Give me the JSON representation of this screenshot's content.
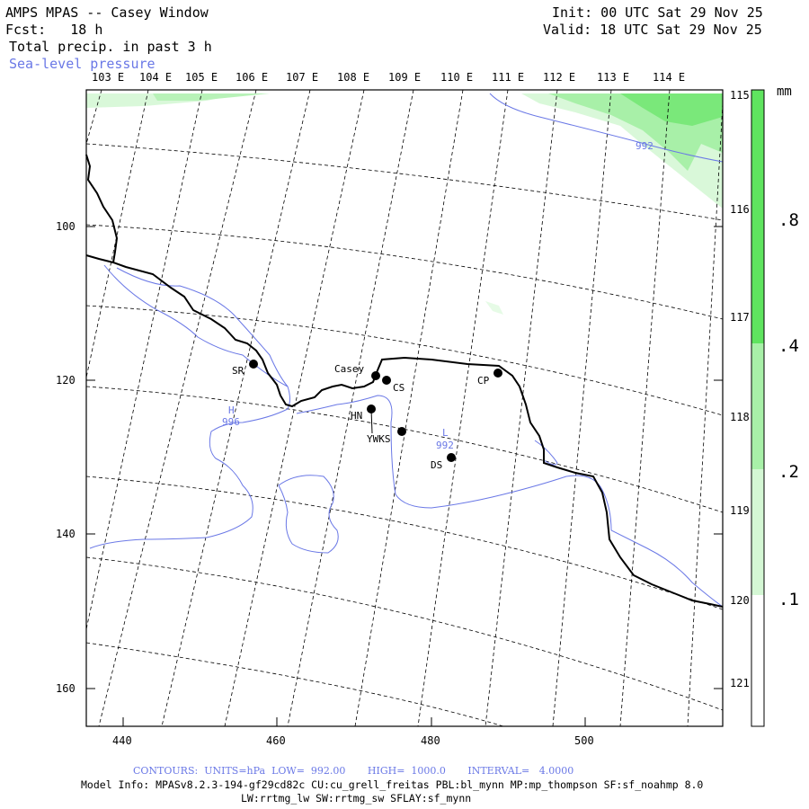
{
  "header": {
    "title": "AMPS MPAS -- Casey Window",
    "forecast": "Fcst:   18 h",
    "field": "Total precip. in past 3 h",
    "overlay": "Sea-level pressure",
    "init": "Init: 00 UTC Sat 29 Nov 25",
    "valid": "Valid: 18 UTC Sat 29 Nov 25"
  },
  "longitude_labels": [
    "103 E",
    "104 E",
    "105 E",
    "106 E",
    "107 E",
    "108 E",
    "109 E",
    "110 E",
    "111 E",
    "112 E",
    "113 E",
    "114 E"
  ],
  "latitude_labels": [
    "115 E",
    "116 E",
    "117 E",
    "118 E",
    "119 E",
    "120 E",
    "121 E"
  ],
  "grid_x_ticks": [
    "440",
    "460",
    "480",
    "500"
  ],
  "grid_y_ticks": [
    "100",
    "120",
    "140",
    "160"
  ],
  "stations": [
    {
      "id": "SR",
      "label": "SR"
    },
    {
      "id": "Casey",
      "label": "Casey"
    },
    {
      "id": "CS",
      "label": "CS"
    },
    {
      "id": "CP",
      "label": "CP"
    },
    {
      "id": "HN",
      "label": "HN"
    },
    {
      "id": "YWKS",
      "label": "YWKS"
    },
    {
      "id": "DS",
      "label": "DS"
    }
  ],
  "pressure_labels": {
    "high_letter": "H",
    "high_value": "996",
    "low_letter": "L",
    "low_value": "992",
    "contour_value": "992"
  },
  "colorbar": {
    "unit": "mm",
    "labels": [
      ".8",
      ".4",
      ".2",
      ".1"
    ],
    "colors": [
      "#5fe45f",
      "#90ee90",
      "#c4f6c4",
      "#e6fbe6",
      "#ffffff"
    ]
  },
  "footer": {
    "contours": "CONTOURS:  UNITS=hPa  LOW=  992.00       HIGH=  1000.0       INTERVAL=   4.0000",
    "model_info": "Model Info: MPASv8.2.3-194-gf29cd82c CU:cu_grell_freitas PBL:bl_mynn MP:mp_thompson SF:sf_noahmp 8.0",
    "model_info2": "LW:rrtmg_lw SW:rrtmg_sw SFLAY:sf_mynn"
  },
  "colors": {
    "contour": "#6a78e6",
    "coast": "#000000",
    "precip_light": "#d9f8d9",
    "precip_mid": "#a8f0a8",
    "precip_strong": "#7ae87a"
  }
}
